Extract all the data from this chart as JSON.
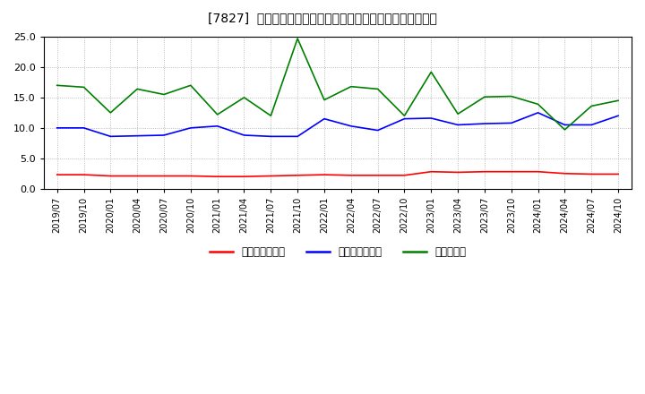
{
  "title": "[7827]  売上債権回転率、買入債務回転率、在庫回転率の推移",
  "dates": [
    "2019/07",
    "2019/10",
    "2020/01",
    "2020/04",
    "2020/07",
    "2020/10",
    "2021/01",
    "2021/04",
    "2021/07",
    "2021/10",
    "2022/01",
    "2022/04",
    "2022/07",
    "2022/10",
    "2023/01",
    "2023/04",
    "2023/07",
    "2023/10",
    "2024/01",
    "2024/04",
    "2024/07",
    "2024/10"
  ],
  "receivables_turnover": [
    2.3,
    2.3,
    2.1,
    2.1,
    2.1,
    2.1,
    2.0,
    2.0,
    2.1,
    2.2,
    2.3,
    2.2,
    2.2,
    2.2,
    2.8,
    2.7,
    2.8,
    2.8,
    2.8,
    2.5,
    2.4,
    2.4
  ],
  "payables_turnover": [
    10.0,
    10.0,
    8.6,
    8.7,
    8.8,
    10.0,
    10.3,
    8.8,
    8.6,
    8.6,
    11.5,
    10.3,
    9.6,
    11.5,
    11.6,
    10.5,
    10.7,
    10.8,
    12.5,
    10.5,
    10.5,
    12.0
  ],
  "inventory_turnover": [
    17.0,
    16.7,
    12.5,
    16.4,
    15.5,
    17.0,
    12.2,
    15.0,
    12.0,
    24.7,
    14.6,
    16.8,
    16.4,
    12.0,
    19.2,
    12.3,
    15.1,
    15.2,
    13.9,
    9.7,
    13.6,
    14.5
  ],
  "receivables_color": "#ff0000",
  "payables_color": "#0000ff",
  "inventory_color": "#008000",
  "ylim": [
    0,
    25.0
  ],
  "yticks": [
    0.0,
    5.0,
    10.0,
    15.0,
    20.0,
    25.0
  ],
  "legend_labels": [
    "売上債権回転率",
    "買入債務回転率",
    "在庫回転率"
  ],
  "bg_color": "#ffffff",
  "grid_color": "#aaaaaa"
}
